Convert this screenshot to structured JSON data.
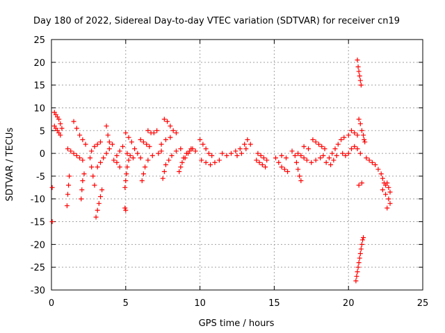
{
  "chart_data": {
    "type": "scatter",
    "title": "Day 180 of 2022, Sidereal Day-to-day VTEC variation (SDTVAR) for receiver cn19",
    "xlabel": "GPS time / hours",
    "ylabel": "SDTVAR / TECUs",
    "xlim": [
      0,
      25
    ],
    "ylim": [
      -30,
      25
    ],
    "xticks": [
      0,
      5,
      10,
      15,
      20,
      25
    ],
    "yticks": [
      25,
      20,
      15,
      10,
      5,
      0,
      -5,
      -10,
      -15,
      -20,
      -25,
      -30
    ],
    "grid": true,
    "marker": "+",
    "color": "#ff0000",
    "series": [
      {
        "name": "SDTVAR",
        "points": [
          [
            0.05,
            -7.5
          ],
          [
            0.05,
            -15
          ],
          [
            0.2,
            9
          ],
          [
            0.3,
            8.5
          ],
          [
            0.4,
            8
          ],
          [
            0.5,
            7.5
          ],
          [
            0.6,
            6.5
          ],
          [
            0.7,
            5.5
          ],
          [
            0.2,
            6
          ],
          [
            0.3,
            5.5
          ],
          [
            0.4,
            5
          ],
          [
            0.5,
            4.5
          ],
          [
            0.6,
            4
          ],
          [
            1.1,
            1
          ],
          [
            1.3,
            0.5
          ],
          [
            1.5,
            0
          ],
          [
            1.7,
            -0.5
          ],
          [
            1.9,
            -1
          ],
          [
            2.1,
            -1.5
          ],
          [
            1.2,
            -5
          ],
          [
            1.15,
            -7
          ],
          [
            1.1,
            -9
          ],
          [
            1.05,
            -11.5
          ],
          [
            1.5,
            7
          ],
          [
            1.7,
            5.5
          ],
          [
            1.9,
            4
          ],
          [
            2.1,
            3
          ],
          [
            2.3,
            2
          ],
          [
            2.2,
            -4.5
          ],
          [
            2.1,
            -6
          ],
          [
            2.05,
            -8
          ],
          [
            2.0,
            -10
          ],
          [
            2.6,
            -1
          ],
          [
            2.7,
            -3
          ],
          [
            2.8,
            -5
          ],
          [
            2.9,
            -7
          ],
          [
            3.0,
            -14
          ],
          [
            3.1,
            -12.5
          ],
          [
            3.2,
            -11
          ],
          [
            3.3,
            -9.5
          ],
          [
            3.4,
            -8
          ],
          [
            3.1,
            -3
          ],
          [
            3.3,
            -2
          ],
          [
            3.5,
            -1
          ],
          [
            3.7,
            0
          ],
          [
            3.9,
            1
          ],
          [
            4.1,
            2
          ],
          [
            3.7,
            6
          ],
          [
            3.8,
            4
          ],
          [
            3.9,
            2.5
          ],
          [
            2.7,
            0.5
          ],
          [
            2.9,
            1.5
          ],
          [
            3.1,
            2
          ],
          [
            3.3,
            2.5
          ],
          [
            4.2,
            -1.5
          ],
          [
            4.4,
            -0.5
          ],
          [
            4.6,
            0.5
          ],
          [
            4.8,
            1.5
          ],
          [
            4.6,
            -3
          ],
          [
            4.4,
            -2
          ],
          [
            4.95,
            -7.5
          ],
          [
            5.0,
            -6
          ],
          [
            5.05,
            -4.5
          ],
          [
            5.1,
            -3
          ],
          [
            5.2,
            -1.5
          ],
          [
            4.95,
            -12
          ],
          [
            5.0,
            -12.5
          ],
          [
            5.0,
            4.5
          ],
          [
            5.2,
            3.5
          ],
          [
            5.4,
            2.5
          ],
          [
            5.6,
            1
          ],
          [
            5.8,
            0
          ],
          [
            6.0,
            -1
          ],
          [
            5.1,
            0
          ],
          [
            5.3,
            -0.5
          ],
          [
            5.5,
            -1
          ],
          [
            6.0,
            3
          ],
          [
            6.2,
            2.5
          ],
          [
            6.4,
            2
          ],
          [
            6.6,
            1.5
          ],
          [
            6.5,
            5
          ],
          [
            6.7,
            4.5
          ],
          [
            6.9,
            4.5
          ],
          [
            7.1,
            5
          ],
          [
            6.1,
            -6
          ],
          [
            6.2,
            -4.5
          ],
          [
            6.3,
            -3
          ],
          [
            6.5,
            -1.5
          ],
          [
            6.8,
            -0.5
          ],
          [
            7.2,
            0
          ],
          [
            7.4,
            0.5
          ],
          [
            7.6,
            7.5
          ],
          [
            7.8,
            7
          ],
          [
            8.0,
            6
          ],
          [
            8.2,
            5
          ],
          [
            8.4,
            4.5
          ],
          [
            7.5,
            -5.5
          ],
          [
            7.6,
            -4
          ],
          [
            7.7,
            -2.5
          ],
          [
            7.9,
            -1.5
          ],
          [
            8.1,
            -0.5
          ],
          [
            8.4,
            0.5
          ],
          [
            8.7,
            1
          ],
          [
            7.4,
            2
          ],
          [
            7.7,
            3
          ],
          [
            8.0,
            3.5
          ],
          [
            8.6,
            -4
          ],
          [
            8.7,
            -3
          ],
          [
            8.8,
            -2
          ],
          [
            8.9,
            -1
          ],
          [
            9.1,
            0
          ],
          [
            9.3,
            0.5
          ],
          [
            9.5,
            1
          ],
          [
            9.7,
            0.5
          ],
          [
            9.0,
            -1
          ],
          [
            9.2,
            0
          ],
          [
            9.4,
            1
          ],
          [
            10.0,
            3
          ],
          [
            10.2,
            2
          ],
          [
            10.4,
            1
          ],
          [
            10.6,
            0
          ],
          [
            10.8,
            -0.5
          ],
          [
            10.1,
            -1.5
          ],
          [
            10.4,
            -2
          ],
          [
            10.7,
            -2.5
          ],
          [
            11.0,
            -2
          ],
          [
            11.3,
            -1.5
          ],
          [
            11.5,
            0
          ],
          [
            11.8,
            -0.5
          ],
          [
            12.1,
            0
          ],
          [
            12.4,
            0.5
          ],
          [
            12.7,
            1
          ],
          [
            13.0,
            2
          ],
          [
            13.2,
            3
          ],
          [
            13.4,
            2
          ],
          [
            12.5,
            -0.5
          ],
          [
            12.8,
            0
          ],
          [
            13.1,
            1
          ],
          [
            13.9,
            0
          ],
          [
            14.1,
            -0.5
          ],
          [
            14.3,
            -1
          ],
          [
            14.5,
            -1.5
          ],
          [
            13.8,
            -1.5
          ],
          [
            14.0,
            -2
          ],
          [
            14.2,
            -2.5
          ],
          [
            14.4,
            -3
          ],
          [
            15.1,
            -1
          ],
          [
            15.3,
            -2
          ],
          [
            15.5,
            -3
          ],
          [
            15.7,
            -3.5
          ],
          [
            15.9,
            -4
          ],
          [
            15.5,
            -0.5
          ],
          [
            15.8,
            -1
          ],
          [
            16.2,
            0.5
          ],
          [
            16.4,
            -0.5
          ],
          [
            16.5,
            -2
          ],
          [
            16.6,
            -3.5
          ],
          [
            16.7,
            -5
          ],
          [
            16.8,
            -6
          ],
          [
            16.6,
            0
          ],
          [
            16.8,
            -0.5
          ],
          [
            17.0,
            -1
          ],
          [
            17.2,
            -1.5
          ],
          [
            17.0,
            1.5
          ],
          [
            17.3,
            1
          ],
          [
            17.5,
            -2
          ],
          [
            17.8,
            -1.5
          ],
          [
            18.1,
            -1
          ],
          [
            18.3,
            -0.5
          ],
          [
            17.6,
            3
          ],
          [
            17.8,
            2.5
          ],
          [
            18.0,
            2
          ],
          [
            18.2,
            1.5
          ],
          [
            18.4,
            1
          ],
          [
            18.5,
            -2
          ],
          [
            18.7,
            -1
          ],
          [
            18.9,
            0
          ],
          [
            19.1,
            1
          ],
          [
            19.3,
            2
          ],
          [
            19.5,
            3
          ],
          [
            19.7,
            3.5
          ],
          [
            18.8,
            -2.5
          ],
          [
            19.0,
            -1.5
          ],
          [
            19.2,
            -0.5
          ],
          [
            19.6,
            0
          ],
          [
            19.8,
            -0.5
          ],
          [
            20.0,
            0
          ],
          [
            20.2,
            1
          ],
          [
            20.4,
            1.5
          ],
          [
            20.6,
            1
          ],
          [
            20.8,
            0
          ],
          [
            20.0,
            4
          ],
          [
            20.2,
            5
          ],
          [
            20.4,
            4.5
          ],
          [
            20.6,
            4
          ],
          [
            20.6,
            20.5
          ],
          [
            20.65,
            19
          ],
          [
            20.7,
            18
          ],
          [
            20.75,
            17
          ],
          [
            20.8,
            16
          ],
          [
            20.85,
            15
          ],
          [
            20.7,
            7.5
          ],
          [
            20.8,
            6.5
          ],
          [
            20.9,
            5
          ],
          [
            21.0,
            4
          ],
          [
            21.05,
            3
          ],
          [
            21.1,
            2.5
          ],
          [
            20.7,
            -7
          ],
          [
            20.9,
            -6.5
          ],
          [
            20.5,
            -28
          ],
          [
            20.55,
            -27
          ],
          [
            20.6,
            -26
          ],
          [
            20.65,
            -25
          ],
          [
            20.7,
            -24
          ],
          [
            20.75,
            -23
          ],
          [
            20.8,
            -22
          ],
          [
            20.85,
            -21
          ],
          [
            20.9,
            -20
          ],
          [
            20.95,
            -19
          ],
          [
            21.0,
            -18.5
          ],
          [
            21.2,
            -1
          ],
          [
            21.4,
            -1.5
          ],
          [
            21.6,
            -2
          ],
          [
            21.8,
            -2.5
          ],
          [
            22.0,
            -3.5
          ],
          [
            22.2,
            -4.5
          ],
          [
            22.3,
            -5.5
          ],
          [
            22.4,
            -6.5
          ],
          [
            22.5,
            -7
          ],
          [
            22.3,
            -8
          ],
          [
            22.5,
            -9
          ],
          [
            22.7,
            -10
          ],
          [
            22.8,
            -11
          ],
          [
            22.6,
            -12
          ],
          [
            22.6,
            -6.5
          ],
          [
            22.7,
            -7.5
          ],
          [
            22.8,
            -8.5
          ]
        ]
      }
    ]
  }
}
